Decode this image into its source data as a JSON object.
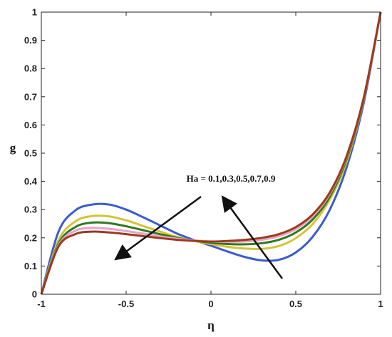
{
  "chart_data": {
    "type": "line",
    "title": "",
    "xlabel": "η",
    "ylabel": "g",
    "xlim": [
      -1,
      1
    ],
    "ylim": [
      0,
      1
    ],
    "xticks": [
      -1,
      -0.5,
      0,
      0.5,
      1
    ],
    "xtick_labels": [
      "-1",
      "-0.5",
      "0",
      "0.5",
      "1"
    ],
    "yticks": [
      0,
      0.1,
      0.2,
      0.3,
      0.4,
      0.5,
      0.6,
      0.7,
      0.8,
      0.9,
      1
    ],
    "ytick_labels": [
      "0",
      "0.1",
      "0.2",
      "0.3",
      "0.4",
      "0.5",
      "0.6",
      "0.7",
      "0.8",
      "0.9",
      "1"
    ],
    "grid": false,
    "legend": "none",
    "annotation": "Ha = 0.1,0.3,0.5,0.7,0.9",
    "x": [
      -1.0,
      -0.9,
      -0.8,
      -0.7,
      -0.6,
      -0.5,
      -0.4,
      -0.3,
      -0.2,
      -0.1,
      0.0,
      0.1,
      0.2,
      0.3,
      0.4,
      0.5,
      0.6,
      0.7,
      0.8,
      0.9,
      1.0
    ],
    "series": [
      {
        "color": "#3a5bd0",
        "values": [
          0.0,
          0.22,
          0.297,
          0.318,
          0.318,
          0.3,
          0.273,
          0.244,
          0.215,
          0.192,
          0.172,
          0.151,
          0.132,
          0.12,
          0.122,
          0.148,
          0.204,
          0.299,
          0.45,
          0.677,
          1.0
        ]
      },
      {
        "color": "#d6c23a",
        "values": [
          0.0,
          0.19,
          0.258,
          0.277,
          0.276,
          0.262,
          0.242,
          0.222,
          0.203,
          0.189,
          0.178,
          0.168,
          0.162,
          0.161,
          0.171,
          0.199,
          0.249,
          0.335,
          0.47,
          0.688,
          1.0
        ]
      },
      {
        "color": "#2f7a1f",
        "values": [
          0.0,
          0.178,
          0.238,
          0.254,
          0.252,
          0.241,
          0.227,
          0.213,
          0.2,
          0.19,
          0.183,
          0.178,
          0.177,
          0.181,
          0.193,
          0.219,
          0.265,
          0.345,
          0.48,
          0.69,
          1.0
        ]
      },
      {
        "color": "#e9a3c9",
        "values": [
          0.0,
          0.172,
          0.225,
          0.235,
          0.232,
          0.224,
          0.215,
          0.205,
          0.197,
          0.191,
          0.187,
          0.186,
          0.187,
          0.193,
          0.206,
          0.231,
          0.276,
          0.355,
          0.487,
          0.693,
          1.0
        ]
      },
      {
        "color": "#9a3a1c",
        "values": [
          0.0,
          0.168,
          0.213,
          0.222,
          0.219,
          0.213,
          0.206,
          0.199,
          0.193,
          0.189,
          0.187,
          0.189,
          0.193,
          0.2,
          0.213,
          0.238,
          0.283,
          0.36,
          0.49,
          0.695,
          1.0
        ]
      }
    ]
  }
}
